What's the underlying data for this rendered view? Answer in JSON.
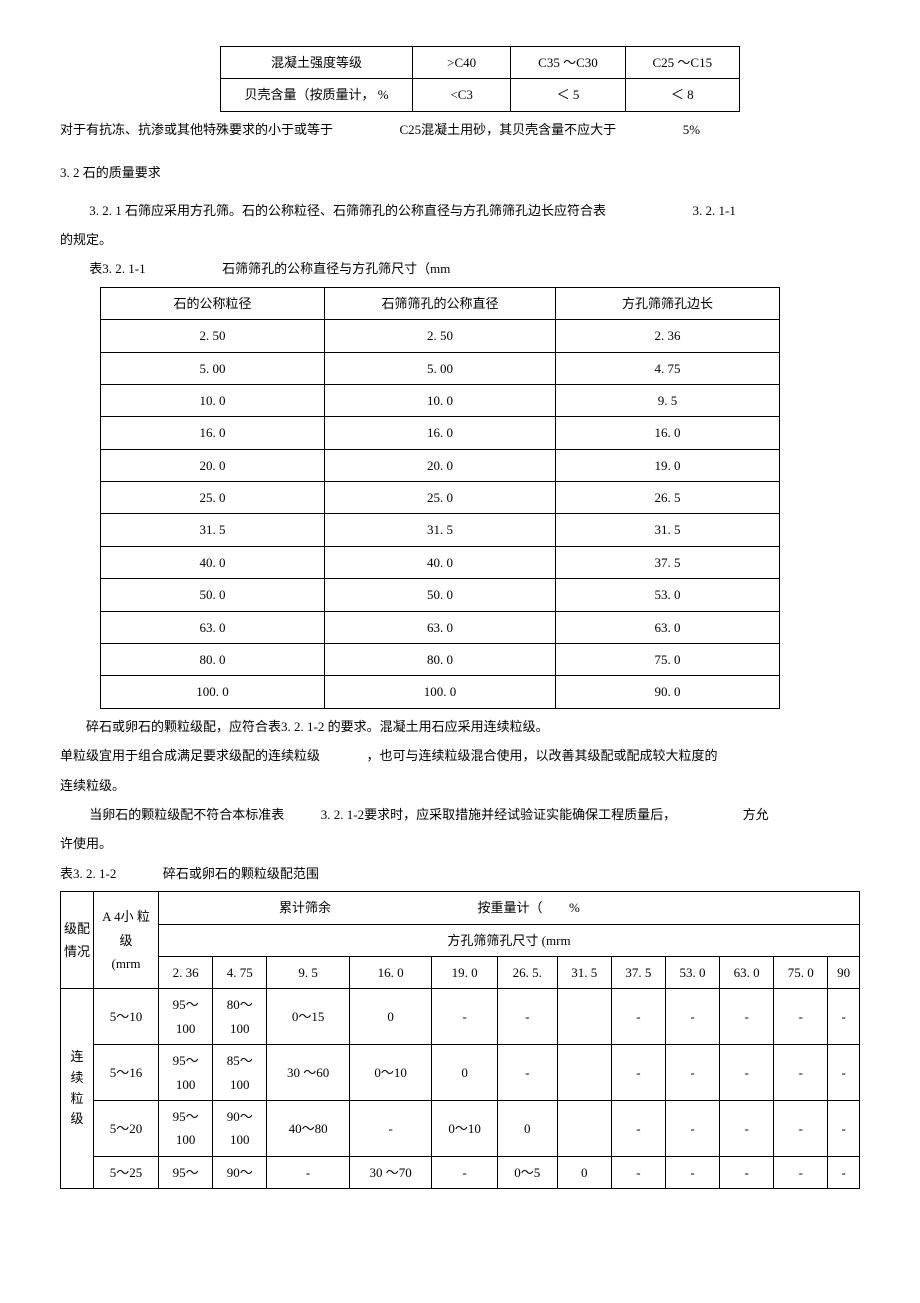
{
  "table1": {
    "headers": [
      "混凝土强度等级",
      ">C40",
      "C35 ～C30",
      "C25 ～C15"
    ],
    "row": [
      "贝壳含量（按质量计，   %",
      "<C3",
      "＜ 5",
      "＜ 8"
    ]
  },
  "line_after_t1": {
    "a": "对于有抗冻、抗渗或其他特殊要求的小于或等于",
    "b": "C25混凝土用砂，其贝壳含量不应大于",
    "c": "5%"
  },
  "section32": "3. 2     石的质量要求",
  "p321a": "3. 2. 1    石筛应采用方孔筛。石的公称粒径、石筛筛孔的公称直径与方孔筛筛孔边长应符合表",
  "p321b": "3. 2. 1-1",
  "p321c": "的规定。",
  "t2caption_a": "表3. 2. 1-1",
  "t2caption_b": "石筛筛孔的公称直径与方孔筛尺寸（mm",
  "table2": {
    "headers": [
      "石的公称粒径",
      "石筛筛孔的公称直径",
      "方孔筛筛孔边长"
    ],
    "rows": [
      [
        "2. 50",
        "2. 50",
        "2. 36"
      ],
      [
        "5. 00",
        "5. 00",
        "4. 75"
      ],
      [
        "10. 0",
        "10. 0",
        "9. 5"
      ],
      [
        "16. 0",
        "16. 0",
        "16. 0"
      ],
      [
        "20. 0",
        "20. 0",
        "19. 0"
      ],
      [
        "25. 0",
        "25. 0",
        "26. 5"
      ],
      [
        "31. 5",
        "31. 5",
        "31. 5"
      ],
      [
        "40. 0",
        "40. 0",
        "37. 5"
      ],
      [
        "50. 0",
        "50. 0",
        "53. 0"
      ],
      [
        "63. 0",
        "63. 0",
        "63. 0"
      ],
      [
        "80. 0",
        "80. 0",
        "75. 0"
      ],
      [
        "100. 0",
        "100. 0",
        "90. 0"
      ]
    ]
  },
  "para_after_t2_1": "碎石或卵石的颗粒级配，应符合表3. 2. 1-2 的要求。混凝土用石应采用连续粒级。",
  "para_after_t2_2a": "单粒级宜用于组合成满足要求级配的连续粒级",
  "para_after_t2_2b": "，也可与连续粒级混合使用，以改善其级配或配成较大粒度的",
  "para_after_t2_3": "连续粒级。",
  "para_after_t2_4a": "当卵石的颗粒级配不符合本标准表",
  "para_after_t2_4b": "3. 2. 1-2要求时，应采取措施并经试验证实能确保工程质量后，",
  "para_after_t2_4c": "方允",
  "para_after_t2_5": "许使用。",
  "t3caption_a": "表3. 2. 1-2",
  "t3caption_b": "碎石或卵石的颗粒级配范围",
  "table3": {
    "hdr": {
      "col1": "级配情况",
      "col2_l1": "A 4小 粒级",
      "col2_l2": "(mrm",
      "span_top_a": "累计筛余",
      "span_top_b": "按重量计（",
      "span_top_c": "%",
      "span_sub": "方孔筛筛孔尺寸 (mrm",
      "sizes": [
        "2. 36",
        "4. 75",
        "9. 5",
        "16. 0",
        "19. 0",
        "26. 5.",
        "31. 5",
        "37. 5",
        "53. 0",
        "63. 0",
        "75. 0",
        "90"
      ]
    },
    "group_label": "连续粒级",
    "rows": [
      {
        "range": "5～10",
        "cells": [
          "95～100",
          "80～100",
          "0～15",
          "0",
          "-",
          "-",
          "",
          "-",
          "-",
          "-",
          "-",
          "-"
        ]
      },
      {
        "range": "5～16",
        "cells": [
          "95～100",
          "85～100",
          "30 ～60",
          "0～10",
          "0",
          "-",
          "",
          "-",
          "-",
          "-",
          "-",
          "-"
        ]
      },
      {
        "range": "5～20",
        "cells": [
          "95～100",
          "90～100",
          "40～80",
          "-",
          "0～10",
          "0",
          "",
          "-",
          "-",
          "-",
          "-",
          "-"
        ]
      },
      {
        "range": "5～25",
        "cells": [
          "95～",
          "90～",
          "-",
          "30 ～70",
          "-",
          "0～5",
          "0",
          "-",
          "-",
          "-",
          "-",
          "-"
        ]
      }
    ]
  }
}
